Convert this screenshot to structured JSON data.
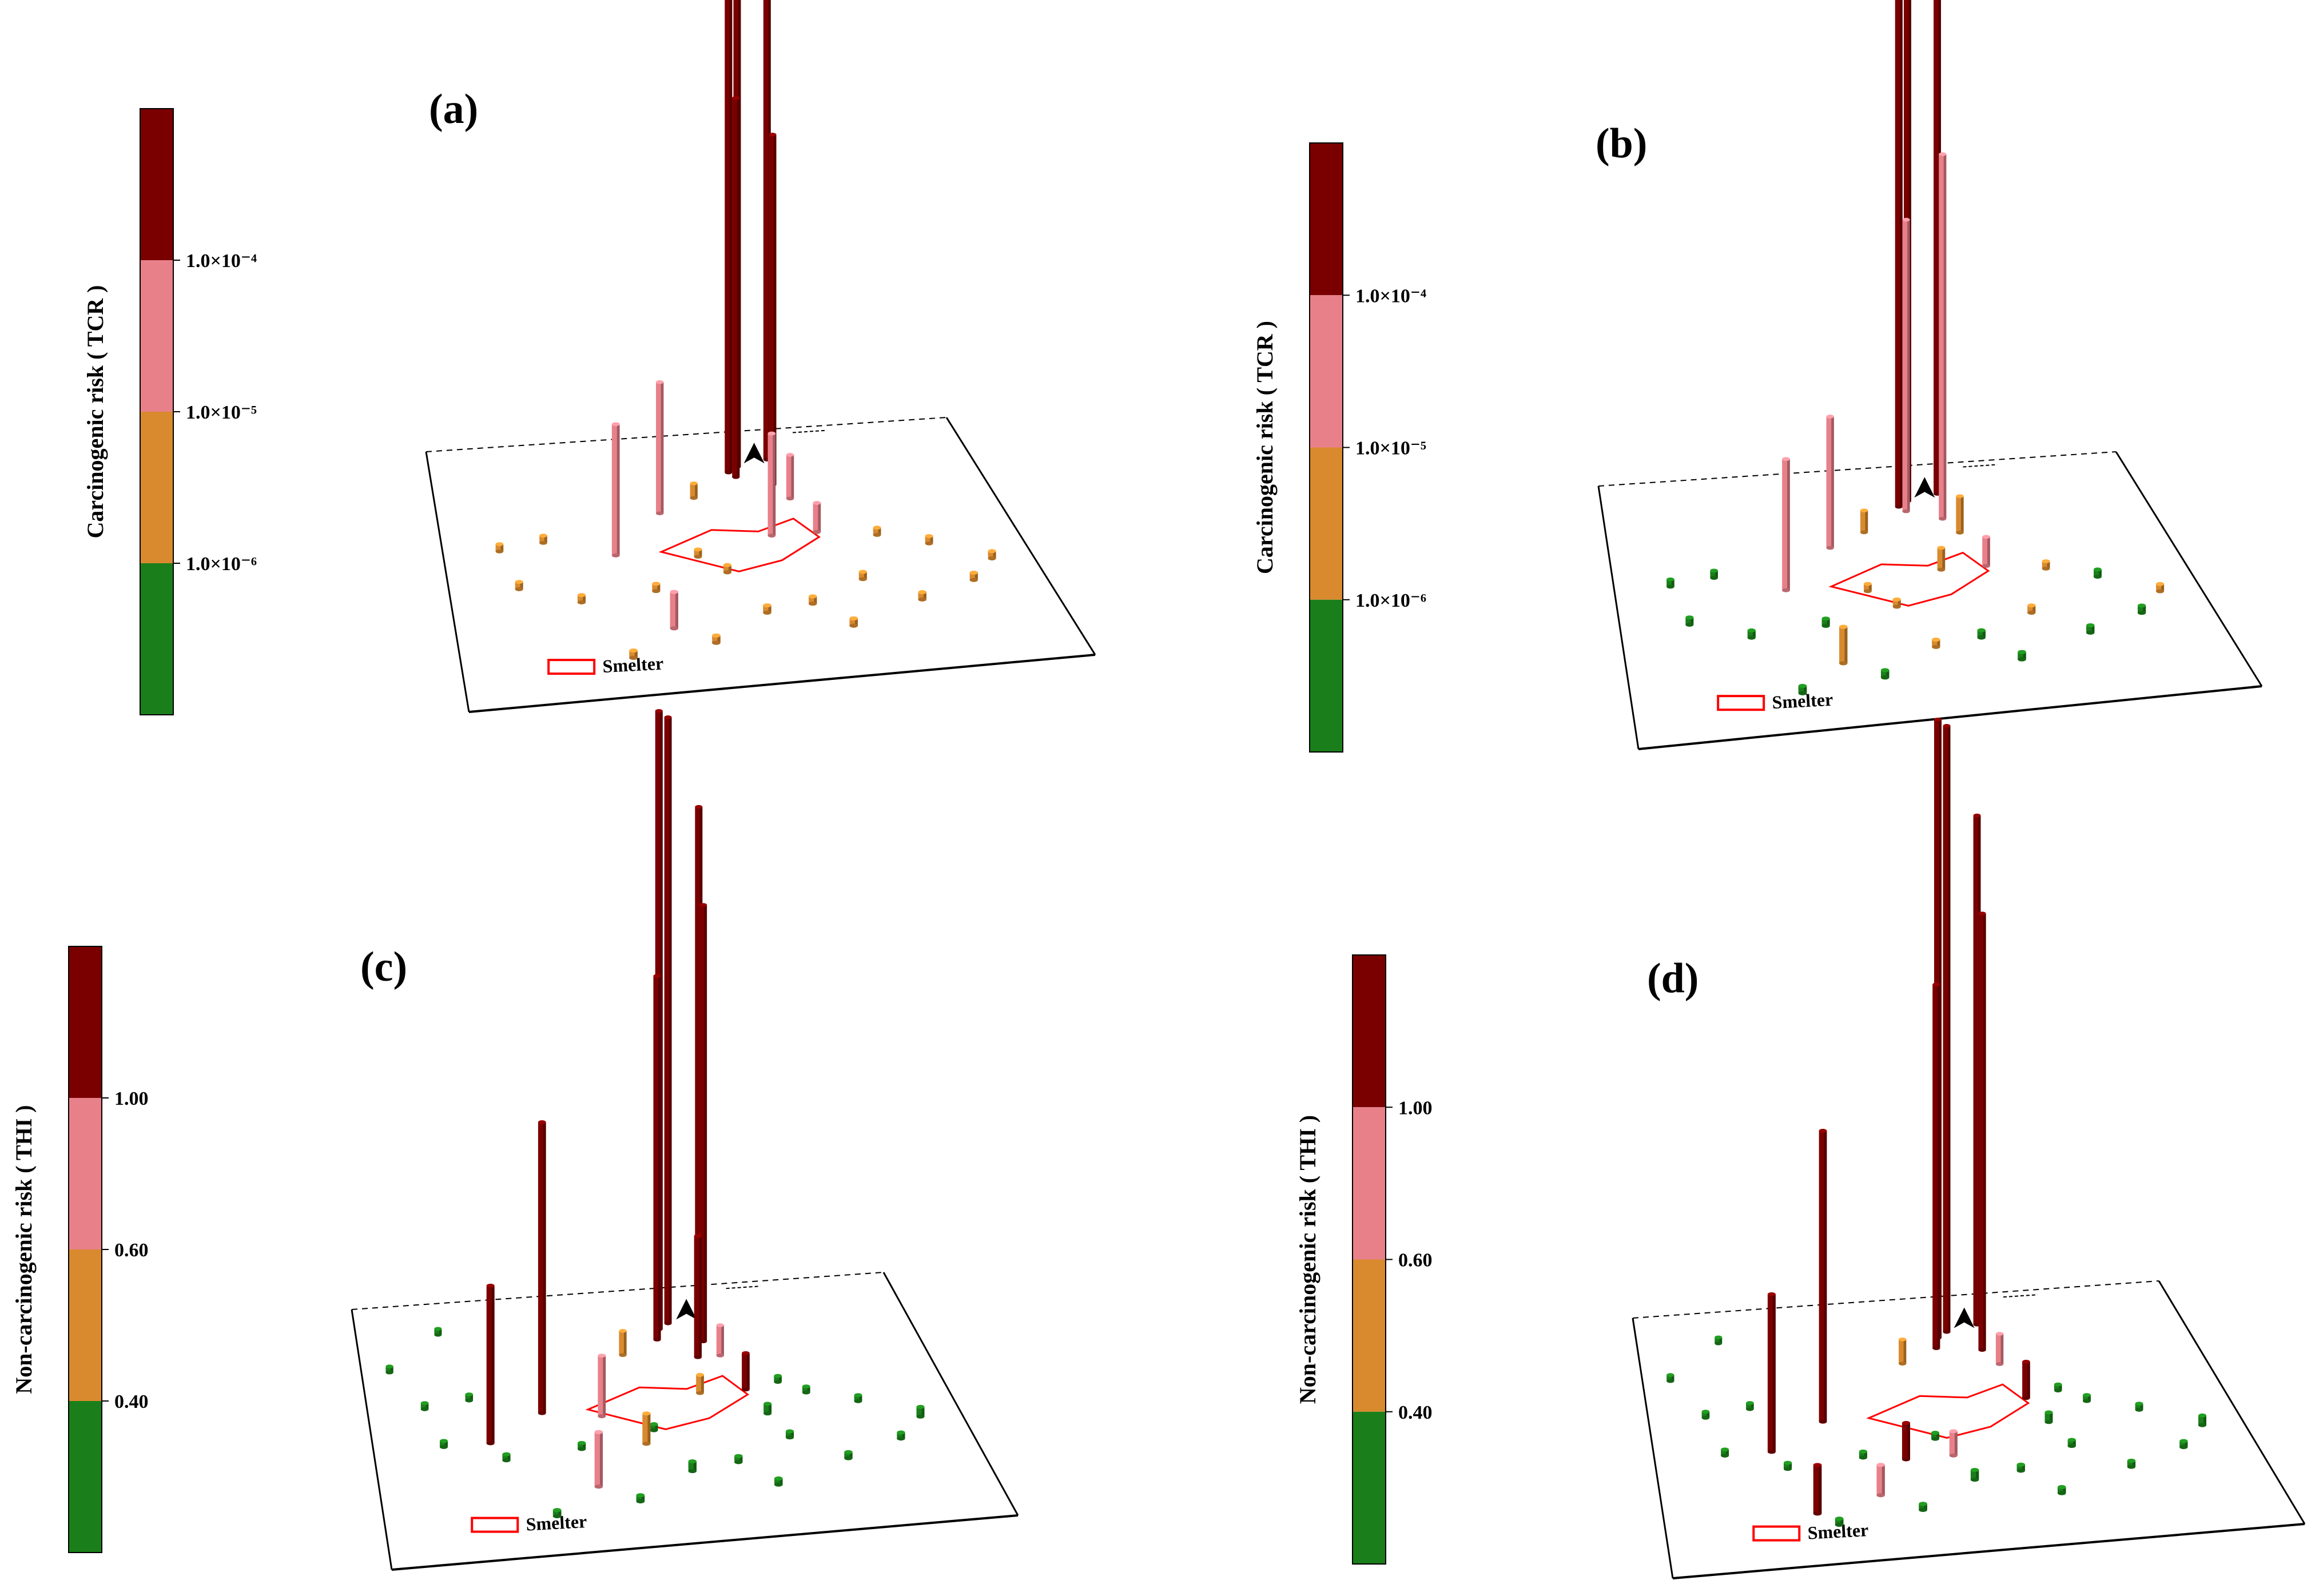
{
  "colors": {
    "dark_red": "#7a0000",
    "pink": "#e8808a",
    "orange": "#d98a2e",
    "green": "#1a7f1a",
    "smelter_outline": "#ff0000"
  },
  "legend": {
    "smelter_label": "Smelter"
  },
  "chart_data": [
    {
      "type": "3d-bar",
      "panel_label": "(a)",
      "colorbar": {
        "title": "Carcinogenic risk ( TCR )",
        "tick_labels": [
          "1.0×10⁻⁴",
          "1.0×10⁻⁵",
          "1.0×10⁻⁶"
        ],
        "classes": [
          "dark_red",
          "pink",
          "orange",
          "green"
        ]
      },
      "sites": [
        {
          "gx": 0.63,
          "gy": 0.12,
          "h": 5.0,
          "c": "dark_red"
        },
        {
          "gx": 0.55,
          "gy": 0.16,
          "h": 3.9,
          "c": "dark_red"
        },
        {
          "gx": 0.57,
          "gy": 0.14,
          "h": 4.0,
          "c": "dark_red"
        },
        {
          "gx": 0.56,
          "gy": 0.18,
          "h": 2.6,
          "c": "dark_red"
        },
        {
          "gx": 0.62,
          "gy": 0.22,
          "h": 2.4,
          "c": "dark_red"
        },
        {
          "gx": 0.3,
          "gy": 0.45,
          "h": 0.9,
          "c": "pink"
        },
        {
          "gx": 0.4,
          "gy": 0.3,
          "h": 0.9,
          "c": "pink"
        },
        {
          "gx": 0.58,
          "gy": 0.42,
          "h": 0.7,
          "c": "pink"
        },
        {
          "gx": 0.64,
          "gy": 0.28,
          "h": 0.3,
          "c": "pink"
        },
        {
          "gx": 0.36,
          "gy": 0.75,
          "h": 0.25,
          "c": "pink"
        },
        {
          "gx": 0.66,
          "gy": 0.42,
          "h": 0.2,
          "c": "pink"
        },
        {
          "gx": 0.47,
          "gy": 0.25,
          "h": 0.1,
          "c": "orange"
        },
        {
          "gx": 0.1,
          "gy": 0.4,
          "h": 0.05,
          "c": "orange"
        },
        {
          "gx": 0.18,
          "gy": 0.38,
          "h": 0.05,
          "c": "orange"
        },
        {
          "gx": 0.12,
          "gy": 0.55,
          "h": 0.05,
          "c": "orange"
        },
        {
          "gx": 0.22,
          "gy": 0.62,
          "h": 0.05,
          "c": "orange"
        },
        {
          "gx": 0.35,
          "gy": 0.6,
          "h": 0.05,
          "c": "orange"
        },
        {
          "gx": 0.48,
          "gy": 0.55,
          "h": 0.05,
          "c": "orange"
        },
        {
          "gx": 0.52,
          "gy": 0.72,
          "h": 0.05,
          "c": "orange"
        },
        {
          "gx": 0.6,
          "gy": 0.7,
          "h": 0.05,
          "c": "orange"
        },
        {
          "gx": 0.7,
          "gy": 0.62,
          "h": 0.05,
          "c": "orange"
        },
        {
          "gx": 0.76,
          "gy": 0.45,
          "h": 0.05,
          "c": "orange"
        },
        {
          "gx": 0.84,
          "gy": 0.5,
          "h": 0.05,
          "c": "orange"
        },
        {
          "gx": 0.78,
          "gy": 0.72,
          "h": 0.05,
          "c": "orange"
        },
        {
          "gx": 0.88,
          "gy": 0.66,
          "h": 0.05,
          "c": "orange"
        },
        {
          "gx": 0.42,
          "gy": 0.82,
          "h": 0.05,
          "c": "orange"
        },
        {
          "gx": 0.28,
          "gy": 0.85,
          "h": 0.05,
          "c": "orange"
        },
        {
          "gx": 0.65,
          "gy": 0.8,
          "h": 0.05,
          "c": "orange"
        },
        {
          "gx": 0.93,
          "gy": 0.58,
          "h": 0.05,
          "c": "orange"
        },
        {
          "gx": 0.44,
          "gy": 0.48,
          "h": 0.05,
          "c": "orange"
        }
      ]
    },
    {
      "type": "3d-bar",
      "panel_label": "(b)",
      "colorbar": {
        "title": "Carcinogenic risk ( TCR )",
        "tick_labels": [
          "1.0×10⁻⁴",
          "1.0×10⁻⁵",
          "1.0×10⁻⁶"
        ],
        "classes": [
          "dark_red",
          "pink",
          "orange",
          "green"
        ]
      },
      "sites": [
        {
          "gx": 0.63,
          "gy": 0.12,
          "h": 5.0,
          "c": "dark_red"
        },
        {
          "gx": 0.55,
          "gy": 0.16,
          "h": 3.9,
          "c": "dark_red"
        },
        {
          "gx": 0.57,
          "gy": 0.14,
          "h": 4.0,
          "c": "dark_red"
        },
        {
          "gx": 0.62,
          "gy": 0.22,
          "h": 2.5,
          "c": "pink"
        },
        {
          "gx": 0.56,
          "gy": 0.18,
          "h": 2.0,
          "c": "pink"
        },
        {
          "gx": 0.3,
          "gy": 0.45,
          "h": 0.9,
          "c": "pink"
        },
        {
          "gx": 0.4,
          "gy": 0.3,
          "h": 0.9,
          "c": "pink"
        },
        {
          "gx": 0.66,
          "gy": 0.42,
          "h": 0.2,
          "c": "pink"
        },
        {
          "gx": 0.64,
          "gy": 0.28,
          "h": 0.25,
          "c": "orange"
        },
        {
          "gx": 0.47,
          "gy": 0.25,
          "h": 0.15,
          "c": "orange"
        },
        {
          "gx": 0.36,
          "gy": 0.75,
          "h": 0.25,
          "c": "orange"
        },
        {
          "gx": 0.58,
          "gy": 0.42,
          "h": 0.15,
          "c": "orange"
        },
        {
          "gx": 0.48,
          "gy": 0.55,
          "h": 0.05,
          "c": "orange"
        },
        {
          "gx": 0.52,
          "gy": 0.72,
          "h": 0.05,
          "c": "orange"
        },
        {
          "gx": 0.7,
          "gy": 0.62,
          "h": 0.05,
          "c": "orange"
        },
        {
          "gx": 0.76,
          "gy": 0.45,
          "h": 0.05,
          "c": "orange"
        },
        {
          "gx": 0.93,
          "gy": 0.58,
          "h": 0.05,
          "c": "orange"
        },
        {
          "gx": 0.44,
          "gy": 0.48,
          "h": 0.05,
          "c": "orange"
        },
        {
          "gx": 0.1,
          "gy": 0.4,
          "h": 0.05,
          "c": "green"
        },
        {
          "gx": 0.18,
          "gy": 0.38,
          "h": 0.05,
          "c": "green"
        },
        {
          "gx": 0.12,
          "gy": 0.55,
          "h": 0.05,
          "c": "green"
        },
        {
          "gx": 0.22,
          "gy": 0.62,
          "h": 0.05,
          "c": "green"
        },
        {
          "gx": 0.35,
          "gy": 0.6,
          "h": 0.05,
          "c": "green"
        },
        {
          "gx": 0.6,
          "gy": 0.7,
          "h": 0.05,
          "c": "green"
        },
        {
          "gx": 0.84,
          "gy": 0.5,
          "h": 0.05,
          "c": "green"
        },
        {
          "gx": 0.78,
          "gy": 0.72,
          "h": 0.05,
          "c": "green"
        },
        {
          "gx": 0.88,
          "gy": 0.66,
          "h": 0.05,
          "c": "green"
        },
        {
          "gx": 0.42,
          "gy": 0.82,
          "h": 0.05,
          "c": "green"
        },
        {
          "gx": 0.28,
          "gy": 0.85,
          "h": 0.05,
          "c": "green"
        },
        {
          "gx": 0.65,
          "gy": 0.8,
          "h": 0.05,
          "c": "green"
        }
      ]
    },
    {
      "type": "3d-bar",
      "panel_label": "(c)",
      "colorbar": {
        "title": "Non-carcinogenic risk ( THI )",
        "tick_labels": [
          "1.00",
          "0.60",
          "0.40"
        ],
        "classes": [
          "dark_red",
          "pink",
          "orange",
          "green"
        ]
      },
      "sites": [
        {
          "gx": 0.57,
          "gy": 0.14,
          "h": 5.0,
          "c": "dark_red"
        },
        {
          "gx": 0.55,
          "gy": 0.16,
          "h": 5.1,
          "c": "dark_red"
        },
        {
          "gx": 0.63,
          "gy": 0.12,
          "h": 4.2,
          "c": "dark_red"
        },
        {
          "gx": 0.62,
          "gy": 0.22,
          "h": 3.6,
          "c": "dark_red"
        },
        {
          "gx": 0.54,
          "gy": 0.2,
          "h": 3.0,
          "c": "dark_red"
        },
        {
          "gx": 0.3,
          "gy": 0.45,
          "h": 2.4,
          "c": "dark_red"
        },
        {
          "gx": 0.2,
          "gy": 0.55,
          "h": 1.3,
          "c": "dark_red"
        },
        {
          "gx": 0.6,
          "gy": 0.28,
          "h": 1.0,
          "c": "dark_red"
        },
        {
          "gx": 0.66,
          "gy": 0.42,
          "h": 0.3,
          "c": "dark_red"
        },
        {
          "gx": 0.4,
          "gy": 0.48,
          "h": 0.5,
          "c": "pink"
        },
        {
          "gx": 0.36,
          "gy": 0.75,
          "h": 0.45,
          "c": "pink"
        },
        {
          "gx": 0.64,
          "gy": 0.28,
          "h": 0.25,
          "c": "pink"
        },
        {
          "gx": 0.47,
          "gy": 0.25,
          "h": 0.2,
          "c": "orange"
        },
        {
          "gx": 0.46,
          "gy": 0.6,
          "h": 0.25,
          "c": "orange"
        },
        {
          "gx": 0.58,
          "gy": 0.42,
          "h": 0.15,
          "c": "orange"
        },
        {
          "gx": 0.1,
          "gy": 0.4,
          "h": 0.05,
          "c": "green"
        },
        {
          "gx": 0.18,
          "gy": 0.38,
          "h": 0.05,
          "c": "green"
        },
        {
          "gx": 0.12,
          "gy": 0.55,
          "h": 0.05,
          "c": "green"
        },
        {
          "gx": 0.22,
          "gy": 0.62,
          "h": 0.05,
          "c": "green"
        },
        {
          "gx": 0.35,
          "gy": 0.6,
          "h": 0.05,
          "c": "green"
        },
        {
          "gx": 0.48,
          "gy": 0.55,
          "h": 0.05,
          "c": "green"
        },
        {
          "gx": 0.52,
          "gy": 0.72,
          "h": 0.08,
          "c": "green"
        },
        {
          "gx": 0.6,
          "gy": 0.7,
          "h": 0.05,
          "c": "green"
        },
        {
          "gx": 0.7,
          "gy": 0.62,
          "h": 0.05,
          "c": "green"
        },
        {
          "gx": 0.76,
          "gy": 0.45,
          "h": 0.05,
          "c": "green"
        },
        {
          "gx": 0.84,
          "gy": 0.5,
          "h": 0.05,
          "c": "green"
        },
        {
          "gx": 0.78,
          "gy": 0.72,
          "h": 0.05,
          "c": "green"
        },
        {
          "gx": 0.88,
          "gy": 0.66,
          "h": 0.05,
          "c": "green"
        },
        {
          "gx": 0.42,
          "gy": 0.82,
          "h": 0.05,
          "c": "green"
        },
        {
          "gx": 0.28,
          "gy": 0.85,
          "h": 0.05,
          "c": "green"
        },
        {
          "gx": 0.65,
          "gy": 0.8,
          "h": 0.05,
          "c": "green"
        },
        {
          "gx": 0.93,
          "gy": 0.58,
          "h": 0.08,
          "c": "green"
        },
        {
          "gx": 0.68,
          "gy": 0.52,
          "h": 0.08,
          "c": "green"
        },
        {
          "gx": 0.72,
          "gy": 0.4,
          "h": 0.05,
          "c": "green"
        },
        {
          "gx": 0.05,
          "gy": 0.25,
          "h": 0.05,
          "c": "green"
        },
        {
          "gx": 0.15,
          "gy": 0.12,
          "h": 0.05,
          "c": "green"
        }
      ]
    },
    {
      "type": "3d-bar",
      "panel_label": "(d)",
      "colorbar": {
        "title": "Non-carcinogenic risk ( THI )",
        "tick_labels": [
          "1.00",
          "0.60",
          "0.40"
        ],
        "classes": [
          "dark_red",
          "pink",
          "orange",
          "green"
        ]
      },
      "sites": [
        {
          "gx": 0.57,
          "gy": 0.14,
          "h": 5.0,
          "c": "dark_red"
        },
        {
          "gx": 0.55,
          "gy": 0.16,
          "h": 5.1,
          "c": "dark_red"
        },
        {
          "gx": 0.63,
          "gy": 0.12,
          "h": 4.2,
          "c": "dark_red"
        },
        {
          "gx": 0.62,
          "gy": 0.22,
          "h": 3.6,
          "c": "dark_red"
        },
        {
          "gx": 0.54,
          "gy": 0.2,
          "h": 3.0,
          "c": "dark_red"
        },
        {
          "gx": 0.3,
          "gy": 0.45,
          "h": 2.4,
          "c": "dark_red"
        },
        {
          "gx": 0.2,
          "gy": 0.55,
          "h": 1.3,
          "c": "dark_red"
        },
        {
          "gx": 0.25,
          "gy": 0.8,
          "h": 0.4,
          "c": "dark_red"
        },
        {
          "gx": 0.42,
          "gy": 0.62,
          "h": 0.3,
          "c": "dark_red"
        },
        {
          "gx": 0.66,
          "gy": 0.42,
          "h": 0.3,
          "c": "dark_red"
        },
        {
          "gx": 0.36,
          "gy": 0.75,
          "h": 0.25,
          "c": "pink"
        },
        {
          "gx": 0.64,
          "gy": 0.28,
          "h": 0.25,
          "c": "pink"
        },
        {
          "gx": 0.5,
          "gy": 0.62,
          "h": 0.2,
          "c": "pink"
        },
        {
          "gx": 0.47,
          "gy": 0.25,
          "h": 0.2,
          "c": "orange"
        },
        {
          "gx": 0.1,
          "gy": 0.4,
          "h": 0.05,
          "c": "green"
        },
        {
          "gx": 0.18,
          "gy": 0.38,
          "h": 0.05,
          "c": "green"
        },
        {
          "gx": 0.12,
          "gy": 0.55,
          "h": 0.05,
          "c": "green"
        },
        {
          "gx": 0.22,
          "gy": 0.62,
          "h": 0.05,
          "c": "green"
        },
        {
          "gx": 0.35,
          "gy": 0.6,
          "h": 0.05,
          "c": "green"
        },
        {
          "gx": 0.48,
          "gy": 0.55,
          "h": 0.05,
          "c": "green"
        },
        {
          "gx": 0.52,
          "gy": 0.72,
          "h": 0.08,
          "c": "green"
        },
        {
          "gx": 0.6,
          "gy": 0.7,
          "h": 0.05,
          "c": "green"
        },
        {
          "gx": 0.7,
          "gy": 0.62,
          "h": 0.05,
          "c": "green"
        },
        {
          "gx": 0.76,
          "gy": 0.45,
          "h": 0.05,
          "c": "green"
        },
        {
          "gx": 0.84,
          "gy": 0.5,
          "h": 0.05,
          "c": "green"
        },
        {
          "gx": 0.78,
          "gy": 0.72,
          "h": 0.05,
          "c": "green"
        },
        {
          "gx": 0.88,
          "gy": 0.66,
          "h": 0.05,
          "c": "green"
        },
        {
          "gx": 0.42,
          "gy": 0.82,
          "h": 0.05,
          "c": "green"
        },
        {
          "gx": 0.28,
          "gy": 0.85,
          "h": 0.05,
          "c": "green"
        },
        {
          "gx": 0.65,
          "gy": 0.8,
          "h": 0.05,
          "c": "green"
        },
        {
          "gx": 0.93,
          "gy": 0.58,
          "h": 0.08,
          "c": "green"
        },
        {
          "gx": 0.68,
          "gy": 0.52,
          "h": 0.08,
          "c": "green"
        },
        {
          "gx": 0.72,
          "gy": 0.4,
          "h": 0.05,
          "c": "green"
        },
        {
          "gx": 0.05,
          "gy": 0.25,
          "h": 0.05,
          "c": "green"
        },
        {
          "gx": 0.15,
          "gy": 0.12,
          "h": 0.05,
          "c": "green"
        }
      ]
    }
  ]
}
